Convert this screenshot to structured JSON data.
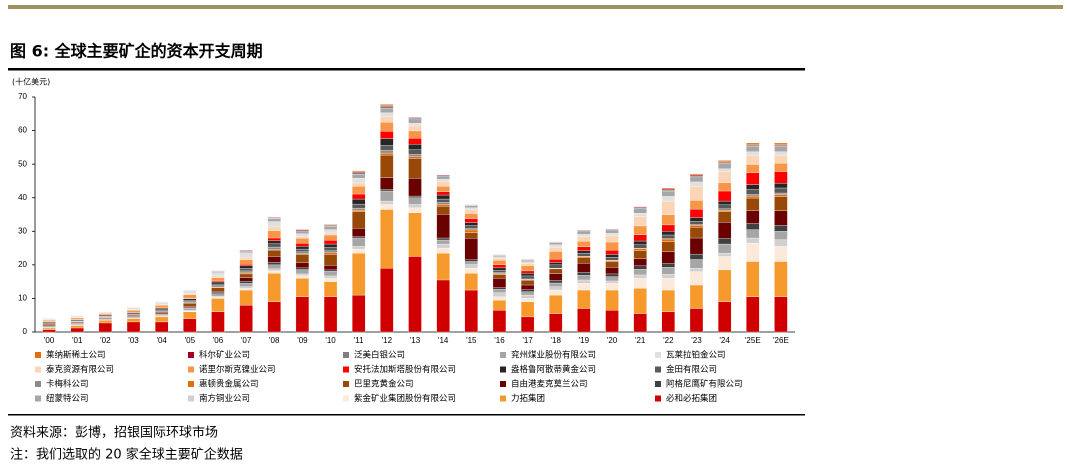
{
  "chart_data": {
    "type": "stacked_bar",
    "title": "图 6: 全球主要矿企的资本开支周期",
    "y_label": "(十亿美元)",
    "source": "资料来源：彭博，招银国际环球市场",
    "note": "注：我们选取的 20 家全球主要矿企数据",
    "categories": [
      "'00",
      "'01",
      "'02",
      "'03",
      "'04",
      "'05",
      "'06",
      "'07",
      "'08",
      "'09",
      "'10",
      "'11",
      "'12",
      "'13",
      "'14",
      "'15",
      "'16",
      "'17",
      "'18",
      "'19",
      "'20",
      "'21",
      "'22",
      "'23",
      "'24",
      "'25E",
      "'26E"
    ],
    "ylim": [
      0,
      70
    ],
    "yticks": [
      0,
      10,
      20,
      30,
      40,
      50,
      60,
      70
    ],
    "series": [
      {
        "name": "莱纳斯稀土公司",
        "color": "#e46c0a",
        "values": [
          0,
          0,
          0,
          0,
          0,
          0,
          0,
          0,
          0,
          0,
          0.2,
          0.3,
          0.4,
          0.1,
          0.1,
          0,
          0,
          0,
          0,
          0.1,
          0.1,
          0.1,
          0.3,
          0.3,
          0.4,
          0.5,
          0.5
        ]
      },
      {
        "name": "科尔矿业公司",
        "color": "#a50021",
        "values": [
          0,
          0,
          0,
          0,
          0,
          0.1,
          0.1,
          0.2,
          0.2,
          0.3,
          0.1,
          0.2,
          0.2,
          0.2,
          0.2,
          0.1,
          0.1,
          0.1,
          0.1,
          0.1,
          0.1,
          0.2,
          0.3,
          0.3,
          0.2,
          0.2,
          0.2
        ]
      },
      {
        "name": "泛美白银公司",
        "color": "#7f7f7f",
        "values": [
          0,
          0,
          0,
          0,
          0.1,
          0.1,
          0.1,
          0.1,
          0.2,
          0.3,
          0.3,
          0.5,
          0.6,
          0.5,
          0.3,
          0.2,
          0.1,
          0.1,
          0.2,
          0.2,
          0.2,
          0.3,
          0.3,
          0.3,
          0.3,
          0.3,
          0.3
        ]
      },
      {
        "name": "兖州煤业股份有限公司",
        "color": "#a6a6a6",
        "values": [
          0.1,
          0.1,
          0.1,
          0.1,
          0.1,
          0.2,
          0.3,
          0.5,
          0.8,
          0.6,
          1,
          1.2,
          1.3,
          1,
          0.8,
          0.6,
          0.4,
          0.5,
          0.6,
          1,
          1,
          1.4,
          1.6,
          1.5,
          1.6,
          1.6,
          1.6
        ]
      },
      {
        "name": "瓦莱拉铂金公司",
        "color": "#e0e0e0",
        "values": [
          0.3,
          0.3,
          0.3,
          0.5,
          0.5,
          0.7,
          1,
          1.4,
          1.6,
          0.9,
          1,
          1.4,
          1,
          0.8,
          0.6,
          0.5,
          0.4,
          0.4,
          0.7,
          0.7,
          0.7,
          1,
          1.4,
          1.3,
          0.9,
          1,
          1
        ]
      },
      {
        "name": "泰克资源有限公司",
        "color": "#fbd5b5",
        "values": [
          0.2,
          0.2,
          0.2,
          0.2,
          0.3,
          0.3,
          0.5,
          0.7,
          1.1,
          0.5,
          0.6,
          1,
          1.8,
          1.5,
          1.5,
          1.2,
          0.6,
          0.7,
          1.3,
          1.4,
          1.9,
          2.8,
          4.1,
          4.2,
          3.2,
          2.8,
          2.4
        ]
      },
      {
        "name": "诺里尔斯克镍业公司",
        "color": "#f79646",
        "values": [
          0.3,
          0.4,
          0.4,
          0.6,
          0.8,
          1,
          1,
          1.3,
          2.2,
          1.5,
          1.6,
          2.3,
          2.7,
          2.2,
          1.6,
          1.5,
          1.4,
          1.6,
          2.3,
          1.6,
          2.4,
          2.6,
          3,
          2.6,
          2.5,
          2.5,
          2.5
        ]
      },
      {
        "name": "安托法加斯塔股份有限公司",
        "color": "#ff0000",
        "values": [
          0.1,
          0.1,
          0.1,
          0.1,
          0.1,
          0.2,
          0.3,
          0.5,
          0.8,
          0.9,
          1.1,
          1.5,
          2.2,
          1.8,
          1,
          1.2,
          0.9,
          0.7,
          1,
          1.2,
          1.3,
          1.9,
          1.9,
          2.5,
          3,
          3.5,
          3.5
        ]
      },
      {
        "name": "盎格鲁阿散蒂黄金公司",
        "color": "#262626",
        "values": [
          0.3,
          0.3,
          0.3,
          0.4,
          0.5,
          0.5,
          0.6,
          0.7,
          0.9,
          0.8,
          1,
          1.5,
          2,
          1.6,
          1.2,
          0.9,
          0.7,
          0.8,
          0.7,
          0.7,
          0.8,
          1.1,
          1.1,
          1.1,
          1.1,
          1.4,
          1.4
        ]
      },
      {
        "name": "金田有限公司",
        "color": "#595959",
        "values": [
          0.1,
          0.2,
          0.2,
          0.2,
          0.3,
          0.4,
          0.5,
          0.8,
          1,
          0.8,
          1,
          1.2,
          1.5,
          1.4,
          1,
          0.9,
          0.7,
          0.9,
          1,
          0.9,
          0.9,
          1.1,
          1.1,
          1,
          1.2,
          1.5,
          1.5
        ]
      },
      {
        "name": "卡梅科公司",
        "color": "#8c8c8c",
        "values": [
          0.1,
          0.1,
          0.1,
          0.1,
          0.2,
          0.3,
          0.4,
          0.6,
          0.8,
          0.6,
          0.6,
          0.6,
          0.8,
          0.7,
          0.6,
          0.4,
          0.3,
          0.2,
          0.1,
          0.1,
          0.1,
          0.1,
          0.1,
          0.2,
          0.4,
          0.5,
          0.5
        ]
      },
      {
        "name": "惠顿贵金属公司",
        "color": "#e46c0a",
        "values": [
          0,
          0,
          0,
          0,
          0,
          0.1,
          0.2,
          0.3,
          0.1,
          0.2,
          0.5,
          0.5,
          0.6,
          0.5,
          0.5,
          0.8,
          0.3,
          0.2,
          0.1,
          0.3,
          0.3,
          0.6,
          0.8,
          0.6,
          0.5,
          0.6,
          0.6
        ]
      },
      {
        "name": "巴里克黄金公司",
        "color": "#984807",
        "values": [
          0.4,
          0.3,
          0.2,
          0.3,
          0.4,
          1,
          1.1,
          1.1,
          1.9,
          2.4,
          3.2,
          4.9,
          6.7,
          5.9,
          2.4,
          1.7,
          1.1,
          1.4,
          1.4,
          1.7,
          1.7,
          2.4,
          3,
          3.2,
          3.1,
          3.8,
          4.2
        ]
      },
      {
        "name": "自由港麦克莫兰公司",
        "color": "#6b0000",
        "values": [
          0.3,
          0.2,
          0.2,
          0.2,
          0.3,
          0.3,
          0.3,
          1.1,
          1.7,
          1.6,
          1.4,
          2.5,
          3.5,
          5.3,
          7.1,
          6.4,
          2.8,
          1.4,
          2,
          2.7,
          2,
          2.1,
          3.5,
          4.8,
          4.8,
          3.8,
          4.3
        ]
      },
      {
        "name": "阿格尼鹰矿有限公司",
        "color": "#404040",
        "values": [
          0,
          0,
          0,
          0.1,
          0.1,
          0.2,
          0.4,
          0.6,
          0.8,
          0.5,
          0.4,
          0.4,
          0.5,
          0.5,
          0.6,
          0.5,
          0.5,
          0.6,
          0.8,
          0.9,
          0.8,
          1,
          1.1,
          1.6,
          1.7,
          1.8,
          1.8
        ]
      },
      {
        "name": "纽蒙特公司",
        "color": "#a6a6a6",
        "values": [
          0.4,
          0.4,
          0.3,
          0.3,
          0.4,
          0.6,
          0.7,
          1,
          1.2,
          1.3,
          1.4,
          2.5,
          3,
          2,
          1.2,
          0.9,
          1,
          1,
          1.1,
          1.4,
          1.3,
          1.7,
          2.1,
          2.6,
          2.7,
          2.5,
          2.5
        ]
      },
      {
        "name": "南方铜业公司",
        "color": "#d0d0d0",
        "values": [
          0.3,
          0.3,
          0.2,
          0.2,
          0.3,
          0.3,
          0.4,
          0.5,
          0.6,
          0.5,
          0.7,
          0.8,
          1,
          1,
          1.2,
          1.1,
          1.2,
          1,
          1,
          1,
          0.7,
          1,
          1.2,
          1,
          1,
          1.5,
          2
        ]
      },
      {
        "name": "紫金矿业集团股份有限公司",
        "color": "#fde9d9",
        "values": [
          0,
          0,
          0,
          0,
          0.1,
          0.2,
          0.3,
          0.5,
          0.7,
          0.8,
          1,
          1.2,
          1.5,
          1.5,
          1.5,
          1.5,
          1,
          1,
          1.5,
          2,
          2,
          3,
          3.5,
          4,
          4,
          5.5,
          4.5
        ]
      },
      {
        "name": "力拓集团",
        "color": "#f79a2e",
        "values": [
          0.5,
          0.7,
          0.8,
          1,
          1.5,
          2,
          4,
          4.5,
          8.5,
          5.5,
          4.5,
          12.5,
          17.5,
          13,
          8,
          5,
          3,
          4.5,
          5.5,
          5.5,
          6,
          7.5,
          6.5,
          7,
          9.5,
          10.5,
          10.5
        ]
      },
      {
        "name": "必和必拓集团",
        "color": "#d00000",
        "values": [
          0.7,
          1.2,
          2.7,
          3,
          3,
          4,
          6,
          8,
          9,
          10.5,
          10.5,
          11,
          19,
          22.5,
          15.5,
          12.5,
          6.5,
          4.5,
          5.5,
          7,
          6.5,
          5.5,
          6,
          7,
          9,
          10.5,
          10.5
        ]
      }
    ]
  }
}
